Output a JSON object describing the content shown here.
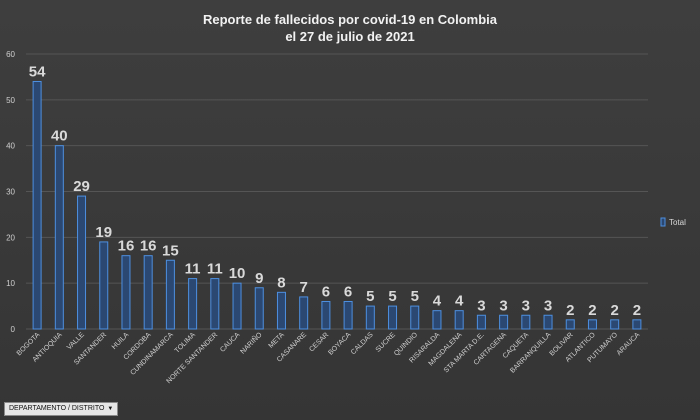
{
  "chart_data": {
    "type": "bar",
    "title": [
      "Reporte de fallecidos por covid-19 en Colombia",
      "el 27 de julio de 2021"
    ],
    "categories": [
      "BOGOTA",
      "ANTIOQUIA",
      "VALLE",
      "SANTANDER",
      "HUILA",
      "CORDOBA",
      "CUNDINAMARCA",
      "TOLIMA",
      "NORTE SANTANDER",
      "CAUCA",
      "NARIÑO",
      "META",
      "CASANARE",
      "CESAR",
      "BOYACA",
      "CALDAS",
      "SUCRE",
      "QUINDIO",
      "RISARALDA",
      "MAGDALENA",
      "STA MARTA D.E.",
      "CARTAGENA",
      "CAQUETA",
      "BARRANQUILLA",
      "BOLIVAR",
      "ATLANTICO",
      "PUTUMAYO",
      "ARAUCA"
    ],
    "series": [
      {
        "name": "Total",
        "values": [
          54,
          40,
          29,
          19,
          16,
          16,
          15,
          11,
          11,
          10,
          9,
          8,
          7,
          6,
          6,
          5,
          5,
          5,
          4,
          4,
          3,
          3,
          3,
          3,
          2,
          2,
          2,
          2
        ]
      }
    ],
    "ylim": [
      0,
      60
    ],
    "yticks": [
      0,
      10,
      20,
      30,
      40,
      50,
      60
    ],
    "xlabel": "",
    "ylabel": "",
    "grid": true,
    "legend": "right"
  },
  "colors": {
    "bar_fill": "#2b4872",
    "bar_stroke": "#4d8fe0",
    "grid": "#555555"
  },
  "filter_button": {
    "label": "DEPARTAMENTO / DISTRITO",
    "arrow": "▼"
  }
}
